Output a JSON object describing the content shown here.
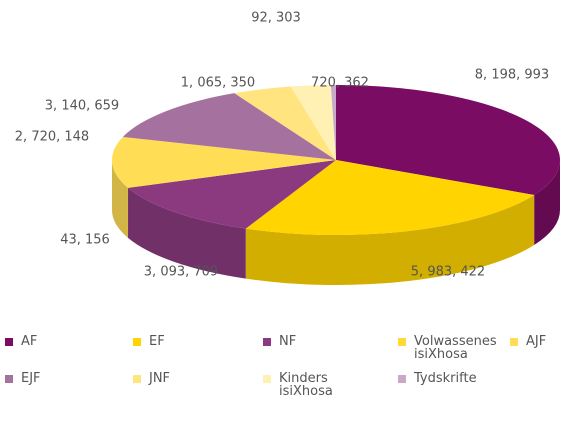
{
  "chart_data": {
    "type": "pie",
    "categories": [
      "AF",
      "EF",
      "NF",
      "Volwassenes isiXhosa",
      "AJF",
      "EJF",
      "JNF",
      "Kinders isiXhosa",
      "Tydskrifte"
    ],
    "values": [
      8198993,
      5983422,
      3093709,
      43156,
      2720148,
      3140659,
      1065350,
      720362,
      92303
    ],
    "value_labels": [
      "8, 198, 993",
      "5, 983, 422",
      "3, 093, 709",
      "43, 156",
      "2, 720, 148",
      "3, 140, 659",
      "1, 065, 350",
      "720, 362",
      "92, 303"
    ],
    "colors": [
      "#7a0c63",
      "#ffd400",
      "#8b3a80",
      "#ffd83a",
      "#ffdd55",
      "#a5729f",
      "#ffe480",
      "#fff0b4",
      "#c9a9ca"
    ],
    "legend": "bottom"
  }
}
